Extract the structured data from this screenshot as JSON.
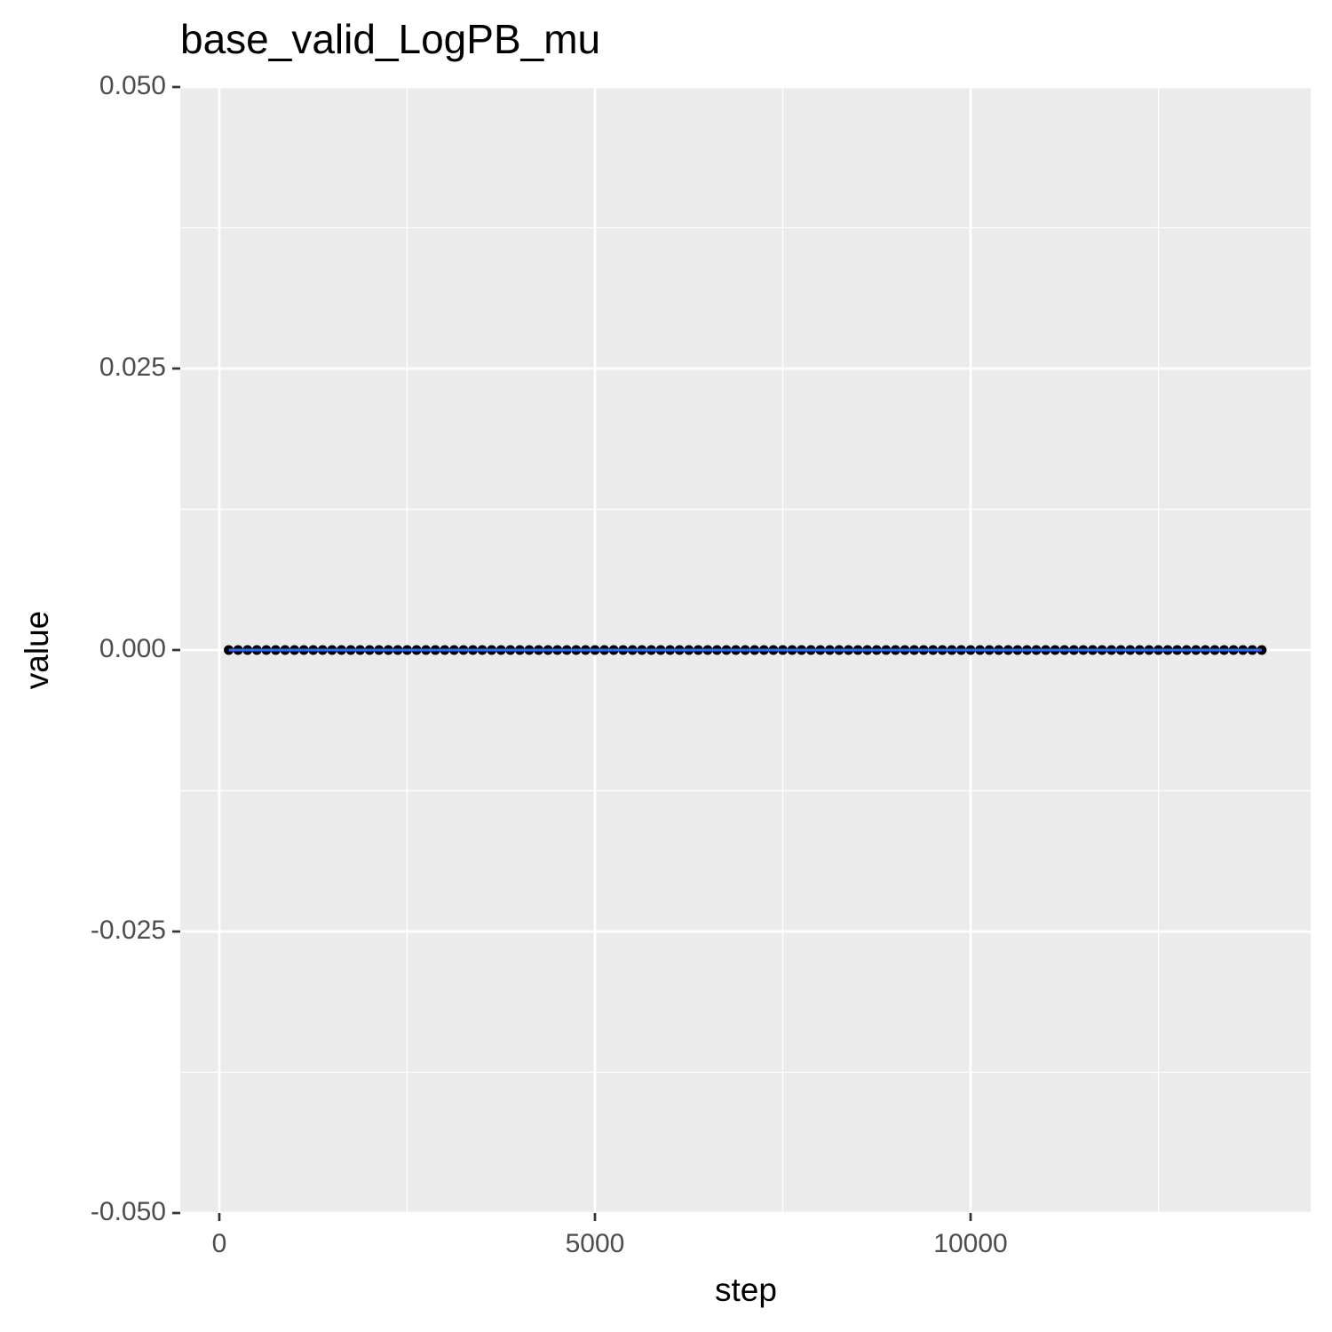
{
  "chart_data": {
    "type": "line",
    "title": "base_valid_LogPB_mu",
    "x_label": "step",
    "y_label": "value",
    "x": [
      125,
      250,
      375,
      500,
      625,
      750,
      875,
      1000,
      1125,
      1250,
      1375,
      1500,
      1625,
      1750,
      1875,
      2000,
      2125,
      2250,
      2375,
      2500,
      2625,
      2750,
      2875,
      3000,
      3125,
      3250,
      3375,
      3500,
      3625,
      3750,
      3875,
      4000,
      4125,
      4250,
      4375,
      4500,
      4625,
      4750,
      4875,
      5000,
      5125,
      5250,
      5375,
      5500,
      5625,
      5750,
      5875,
      6000,
      6125,
      6250,
      6375,
      6500,
      6625,
      6750,
      6875,
      7000,
      7125,
      7250,
      7375,
      7500,
      7625,
      7750,
      7875,
      8000,
      8125,
      8250,
      8375,
      8500,
      8625,
      8750,
      8875,
      9000,
      9125,
      9250,
      9375,
      9500,
      9625,
      9750,
      9875,
      10000,
      10125,
      10250,
      10375,
      10500,
      10625,
      10750,
      10875,
      11000,
      11125,
      11250,
      11375,
      11500,
      11625,
      11750,
      11875,
      12000,
      12125,
      12250,
      12375,
      12500,
      12625,
      12750,
      12875,
      13000,
      13125,
      13250,
      13375,
      13500,
      13625,
      13750,
      13875
    ],
    "values": [
      0,
      0,
      0,
      0,
      0,
      0,
      0,
      0,
      0,
      0,
      0,
      0,
      0,
      0,
      0,
      0,
      0,
      0,
      0,
      0,
      0,
      0,
      0,
      0,
      0,
      0,
      0,
      0,
      0,
      0,
      0,
      0,
      0,
      0,
      0,
      0,
      0,
      0,
      0,
      0,
      0,
      0,
      0,
      0,
      0,
      0,
      0,
      0,
      0,
      0,
      0,
      0,
      0,
      0,
      0,
      0,
      0,
      0,
      0,
      0,
      0,
      0,
      0,
      0,
      0,
      0,
      0,
      0,
      0,
      0,
      0,
      0,
      0,
      0,
      0,
      0,
      0,
      0,
      0,
      0,
      0,
      0,
      0,
      0,
      0,
      0,
      0,
      0,
      0,
      0,
      0,
      0,
      0,
      0,
      0,
      0,
      0,
      0,
      0,
      0,
      0,
      0,
      0,
      0,
      0,
      0,
      0,
      0,
      0,
      0,
      0
    ],
    "line_color": "#3366ff",
    "point_color": "#000000",
    "xlim": [
      -520,
      14527
    ],
    "xticks": [
      0,
      5000,
      10000
    ],
    "x_minor_grid": [
      2500,
      7500,
      12500
    ],
    "ylim": [
      -0.05,
      0.05
    ],
    "yticks": [
      {
        "value": -0.05,
        "label": "-0.050"
      },
      {
        "value": -0.025,
        "label": "-0.025"
      },
      {
        "value": 0,
        "label": "0.000"
      },
      {
        "value": 0.025,
        "label": "0.025"
      },
      {
        "value": 0.05,
        "label": "0.050"
      }
    ],
    "y_minor_grid": [
      -0.0375,
      -0.0125,
      0.0125,
      0.0375
    ],
    "grid": true
  }
}
